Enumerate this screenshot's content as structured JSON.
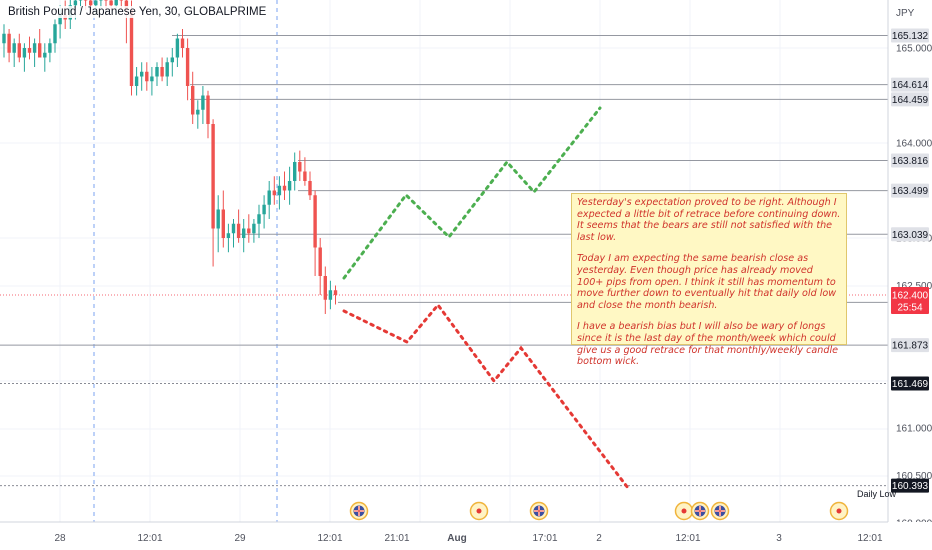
{
  "header": {
    "title": "British Pound / Japanese Yen, 30, GLOBALPRIME"
  },
  "axis": {
    "currency": "JPY",
    "y_tick_labels": [
      "165.000",
      "164.000",
      "163.000",
      "162.500",
      "161.000",
      "160.500",
      "160.000"
    ],
    "x_tick_labels": [
      "28",
      "12:01",
      "29",
      "12:01",
      "21:01",
      "Aug",
      "17:01",
      "2",
      "12:01",
      "3",
      "12:01"
    ]
  },
  "levels": [
    {
      "label": "165.132",
      "price": 165.132,
      "style": "plain"
    },
    {
      "label": "164.614",
      "price": 164.614,
      "style": "plain"
    },
    {
      "label": "164.459",
      "price": 164.459,
      "style": "plain"
    },
    {
      "label": "163.816",
      "price": 163.816,
      "style": "plain"
    },
    {
      "label": "163.499",
      "price": 163.499,
      "style": "plain"
    },
    {
      "label": "163.039",
      "price": 163.039,
      "style": "plain"
    },
    {
      "label": "162.323",
      "price": 162.323,
      "style": "plain"
    },
    {
      "label": "161.873",
      "price": 161.873,
      "style": "plain"
    },
    {
      "label": "161.469",
      "price": 161.469,
      "style": "dark"
    },
    {
      "label": "160.393",
      "price": 160.393,
      "style": "dark"
    }
  ],
  "current_price": {
    "label": "162.400",
    "countdown": "25:54",
    "price": 162.4,
    "color": "#f23645"
  },
  "daily_low_label": "Daily Low",
  "note": {
    "paragraphs": [
      "Yesterday's expectation proved to be right. Although I expected a little bit of retrace before continuing down. It seems that the bears are still not satisfied with the last low.",
      "Today I am expecting the same bearish close as yesterday. Even though price has already moved 100+ pips from open. I think it still has momentum to move further down to eventually hit that daily old low and close the month bearish.",
      "I have a bearish bias but I will also be wary of longs since it is the last day of the month/week which could give us a good retrace for that monthly/weekly candle bottom wick."
    ]
  },
  "colors": {
    "bull": "#26a69a",
    "bear": "#ef5350",
    "bull_path": "#4caf50",
    "bear_path": "#e53935",
    "grid": "#f0f3fa"
  },
  "chart_data": {
    "type": "candlestick",
    "symbol": "GBPJPY",
    "timeframe": "30",
    "ylim": [
      160.0,
      165.6
    ],
    "candles": [
      [
        165.05,
        165.25,
        164.9,
        165.15
      ],
      [
        165.15,
        165.2,
        164.85,
        164.95
      ],
      [
        164.95,
        165.1,
        164.8,
        165.05
      ],
      [
        165.05,
        165.15,
        164.85,
        164.9
      ],
      [
        164.9,
        165.05,
        164.75,
        165.0
      ],
      [
        165.0,
        165.12,
        164.88,
        164.95
      ],
      [
        164.95,
        165.1,
        164.8,
        165.05
      ],
      [
        165.05,
        165.2,
        164.9,
        164.9
      ],
      [
        164.9,
        165.05,
        164.75,
        164.95
      ],
      [
        164.95,
        165.1,
        164.85,
        165.05
      ],
      [
        165.05,
        165.3,
        164.95,
        165.25
      ],
      [
        165.25,
        165.45,
        165.1,
        165.35
      ],
      [
        165.35,
        165.5,
        165.2,
        165.3
      ],
      [
        165.3,
        165.55,
        165.2,
        165.45
      ],
      [
        165.45,
        165.6,
        165.3,
        165.5
      ],
      [
        165.5,
        165.6,
        165.35,
        165.55
      ],
      [
        165.55,
        165.6,
        165.4,
        165.5
      ],
      [
        165.5,
        165.6,
        165.35,
        165.45
      ],
      [
        165.45,
        165.6,
        165.35,
        165.5
      ],
      [
        165.5,
        165.6,
        165.4,
        165.55
      ],
      [
        165.55,
        165.6,
        165.4,
        165.5
      ],
      [
        165.5,
        165.6,
        165.4,
        165.45
      ],
      [
        165.45,
        165.6,
        165.35,
        165.55
      ],
      [
        165.55,
        165.6,
        165.4,
        165.5
      ],
      [
        165.5,
        165.6,
        165.05,
        165.4
      ],
      [
        165.4,
        165.5,
        164.5,
        164.6
      ],
      [
        164.6,
        164.8,
        164.5,
        164.7
      ],
      [
        164.7,
        164.85,
        164.55,
        164.75
      ],
      [
        164.75,
        164.85,
        164.55,
        164.65
      ],
      [
        164.65,
        164.8,
        164.5,
        164.7
      ],
      [
        164.7,
        164.85,
        164.6,
        164.8
      ],
      [
        164.8,
        164.9,
        164.65,
        164.7
      ],
      [
        164.7,
        164.9,
        164.6,
        164.85
      ],
      [
        164.85,
        165.0,
        164.7,
        164.9
      ],
      [
        164.9,
        165.15,
        164.8,
        165.1
      ],
      [
        165.1,
        165.2,
        164.9,
        165.0
      ],
      [
        165.0,
        165.1,
        164.45,
        164.6
      ],
      [
        164.6,
        164.75,
        164.2,
        164.3
      ],
      [
        164.3,
        164.45,
        164.15,
        164.35
      ],
      [
        164.35,
        164.6,
        164.2,
        164.5
      ],
      [
        164.5,
        164.55,
        164.05,
        164.2
      ],
      [
        164.2,
        164.25,
        162.7,
        163.1
      ],
      [
        163.1,
        163.45,
        162.85,
        163.3
      ],
      [
        163.3,
        163.5,
        162.9,
        163.0
      ],
      [
        163.0,
        163.15,
        162.85,
        163.05
      ],
      [
        163.05,
        163.2,
        162.9,
        163.15
      ],
      [
        163.15,
        163.3,
        162.95,
        163.0
      ],
      [
        163.0,
        163.2,
        162.85,
        163.1
      ],
      [
        163.1,
        163.25,
        162.95,
        163.05
      ],
      [
        163.05,
        163.2,
        162.95,
        163.15
      ],
      [
        163.15,
        163.35,
        163.0,
        163.25
      ],
      [
        163.25,
        163.45,
        163.1,
        163.35
      ],
      [
        163.35,
        163.6,
        163.2,
        163.5
      ],
      [
        163.5,
        163.65,
        163.35,
        163.45
      ],
      [
        163.45,
        163.65,
        163.3,
        163.55
      ],
      [
        163.55,
        163.7,
        163.4,
        163.5
      ],
      [
        163.5,
        163.75,
        163.35,
        163.6
      ],
      [
        163.6,
        163.9,
        163.5,
        163.8
      ],
      [
        163.8,
        163.92,
        163.6,
        163.7
      ],
      [
        163.7,
        163.85,
        163.55,
        163.6
      ],
      [
        163.6,
        163.7,
        163.4,
        163.45
      ],
      [
        163.45,
        163.5,
        162.6,
        162.9
      ],
      [
        162.9,
        163.0,
        162.4,
        162.6
      ],
      [
        162.6,
        162.7,
        162.2,
        162.35
      ],
      [
        162.35,
        162.55,
        162.25,
        162.45
      ],
      [
        162.45,
        162.5,
        162.3,
        162.4
      ]
    ],
    "bullish_path": [
      [
        344,
        278
      ],
      [
        406,
        195
      ],
      [
        449,
        237
      ],
      [
        507,
        162
      ],
      [
        534,
        192
      ],
      [
        600,
        108
      ]
    ],
    "bearish_path": [
      [
        344,
        311
      ],
      [
        407,
        342
      ],
      [
        438,
        305
      ],
      [
        494,
        381
      ],
      [
        521,
        348
      ],
      [
        628,
        488
      ]
    ]
  }
}
